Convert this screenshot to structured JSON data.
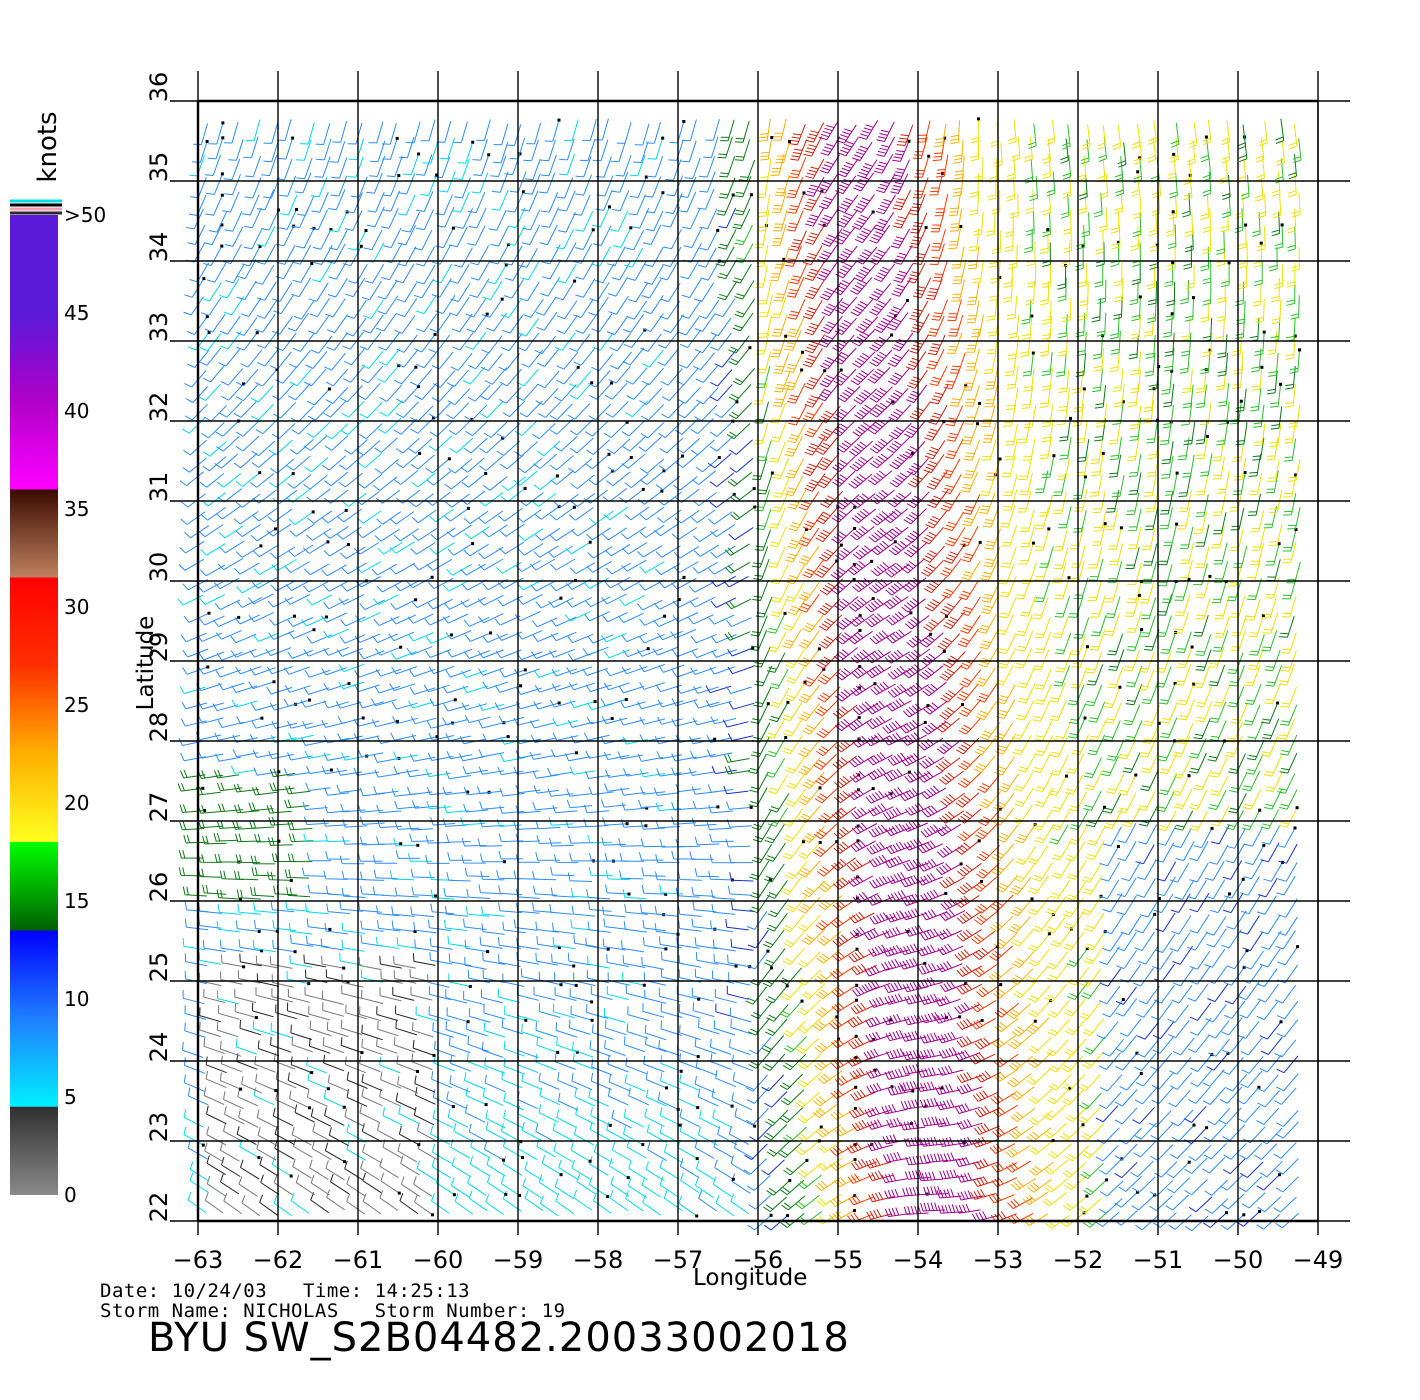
{
  "map": {
    "type": "wind-barb-map",
    "x_axis_label": "Longitude",
    "y_axis_label": "Latitude",
    "longitude_ticks": [
      "-63",
      "-62",
      "-61",
      "-60",
      "-59",
      "-58",
      "-57",
      "-56",
      "-55",
      "-54",
      "-53",
      "-52",
      "-51",
      "-50",
      "-49"
    ],
    "latitude_ticks": [
      "22",
      "23",
      "24",
      "25",
      "26",
      "27",
      "28",
      "29",
      "30",
      "31",
      "32",
      "33",
      "34",
      "35",
      "36"
    ],
    "xlim": [
      -63,
      -49
    ],
    "ylim": [
      22,
      36
    ],
    "grid": true,
    "wind_fields": [
      {
        "region": "west",
        "speed_range_knots": [
          8,
          14
        ],
        "color": "#1e4fd8"
      },
      {
        "region": "south-west",
        "speed_range_knots": [
          3,
          6
        ],
        "color": "#333333"
      },
      {
        "region": "east",
        "speed_range_knots": [
          15,
          24
        ],
        "color": "#22b022"
      },
      {
        "region": "storm-core",
        "speed_range_knots": [
          30,
          50
        ],
        "color": "#9b00c8"
      }
    ]
  },
  "colorbar": {
    "unit_label": "knots",
    "tick_labels": [
      "0",
      "5",
      "10",
      "15",
      "20",
      "25",
      "30",
      "35",
      "40",
      "45",
      ">50"
    ],
    "colors": [
      "#808080",
      "#333333",
      "#00e5ff",
      "#1f8fff",
      "#0000ff",
      "#006400",
      "#00ff00",
      "#ffe000",
      "#ff8c00",
      "#ff1e00",
      "#b06030",
      "#3a0a00",
      "#ff00ff",
      "#b000c8",
      "#5a1ad8"
    ]
  },
  "info": {
    "date_line": "Date: 10/24/03   Time: 14:25:13",
    "storm_line": "Storm Name: NICHOLAS   Storm Number: 19",
    "product_id": "BYU SW_S2B04482.20033002018"
  }
}
